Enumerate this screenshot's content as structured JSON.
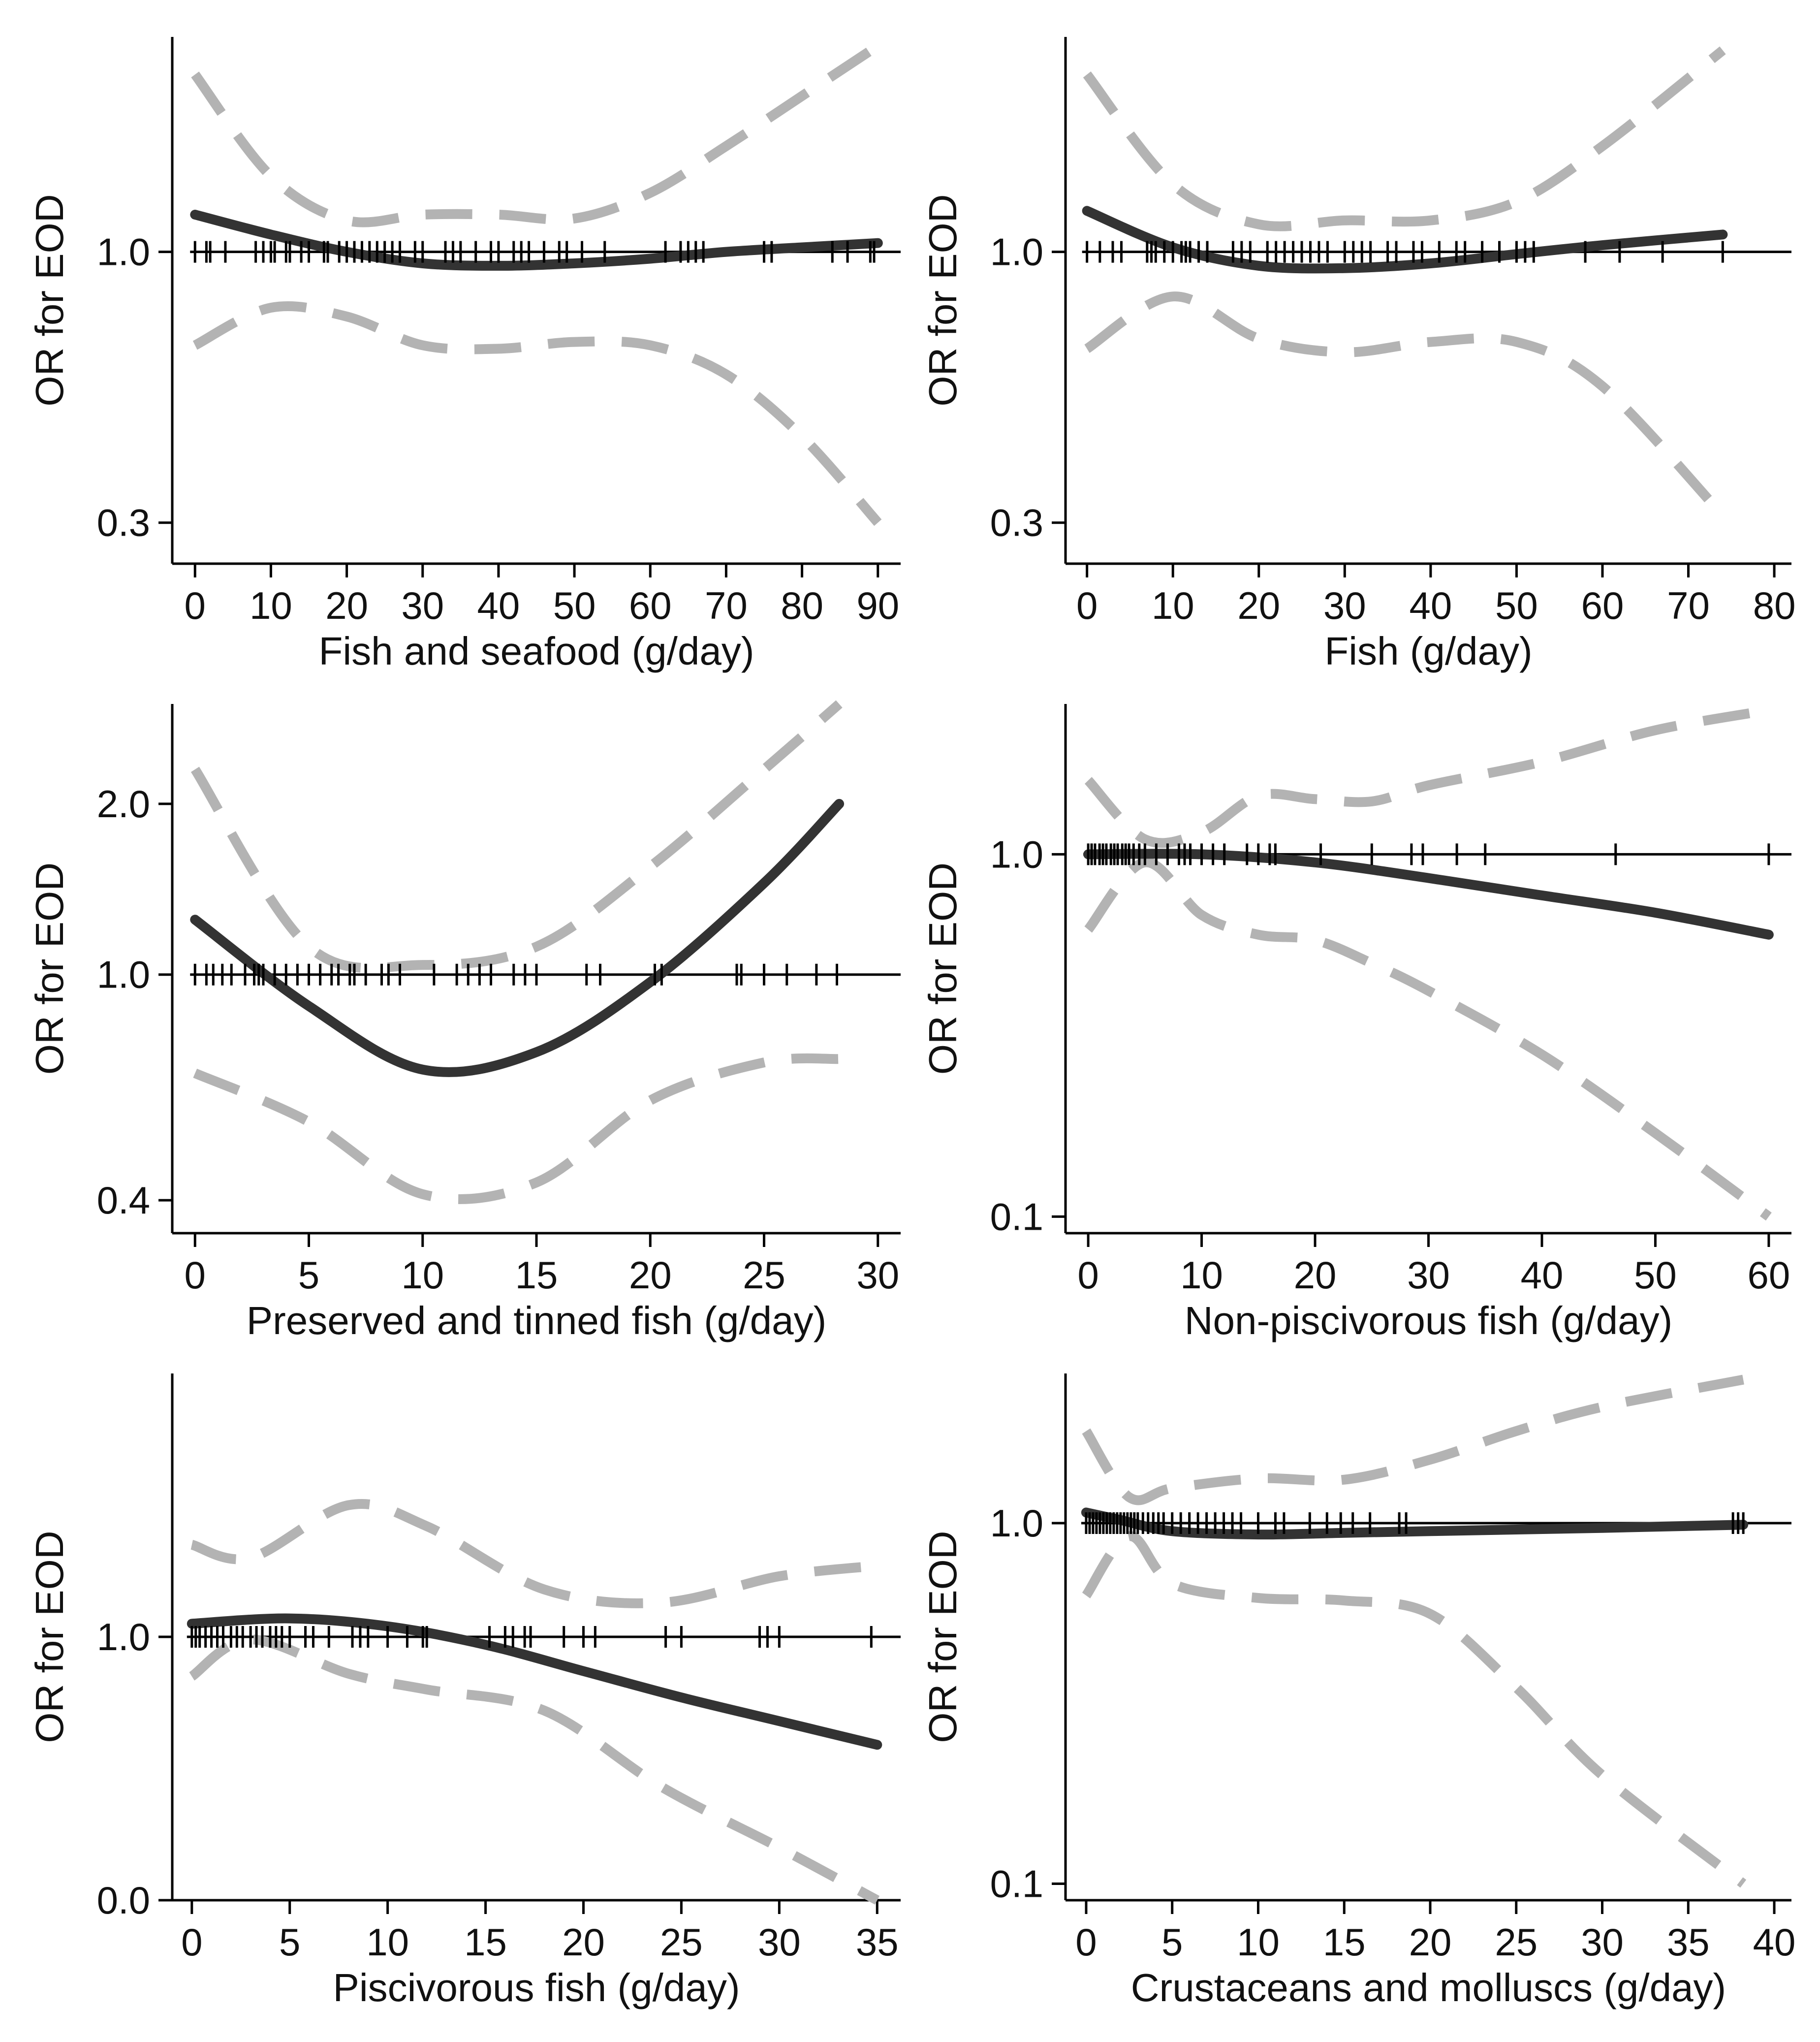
{
  "colors": {
    "estimate": "#333333",
    "ci": "#b3b3b3",
    "axis": "#000000"
  },
  "chart_data": [
    {
      "type": "line",
      "xlabel": "Fish and seafood (g/day)",
      "ylabel": "OR for EOD",
      "x_ticks": [
        0,
        10,
        20,
        30,
        40,
        50,
        60,
        70,
        80,
        90
      ],
      "xlim": [
        -3,
        93
      ],
      "y_ticks": [
        0.3,
        1.0
      ],
      "y_tick_labels": [
        "0.3",
        "1.0"
      ],
      "ylim": [
        0.25,
        2.6
      ],
      "reference_line": 1.0,
      "series": [
        {
          "name": "OR",
          "style": "solid",
          "x": [
            0,
            10,
            20,
            30,
            40,
            50,
            60,
            70,
            80,
            90
          ],
          "y": [
            1.18,
            1.08,
            1.0,
            0.95,
            0.94,
            0.95,
            0.97,
            1.0,
            1.02,
            1.04
          ]
        },
        {
          "name": "Upper 95% CI",
          "style": "dashed",
          "x": [
            0,
            10,
            20,
            30,
            40,
            50,
            60,
            70,
            80,
            90
          ],
          "y": [
            2.2,
            1.4,
            1.15,
            1.18,
            1.18,
            1.16,
            1.3,
            1.6,
            2.0,
            2.5
          ]
        },
        {
          "name": "Lower 95% CI",
          "style": "dashed",
          "x": [
            0,
            10,
            20,
            30,
            40,
            50,
            60,
            70,
            80,
            90
          ],
          "y": [
            0.66,
            0.78,
            0.75,
            0.66,
            0.65,
            0.67,
            0.66,
            0.58,
            0.44,
            0.3
          ]
        }
      ],
      "rug": [
        0,
        1.5,
        2,
        4,
        8,
        9,
        10,
        10.5,
        12,
        12.5,
        14,
        15,
        17,
        17.5,
        19,
        20,
        21,
        22,
        23,
        24,
        25,
        26,
        27,
        29,
        30,
        33,
        34,
        35,
        37,
        39,
        40,
        42,
        43,
        44,
        46,
        48,
        49,
        51,
        54,
        62,
        64,
        65,
        66,
        67,
        75,
        76,
        84,
        86,
        89,
        89.5
      ]
    },
    {
      "type": "line",
      "xlabel": "Fish (g/day)",
      "ylabel": "OR for EOD",
      "x_ticks": [
        0,
        10,
        20,
        30,
        40,
        50,
        60,
        70,
        80
      ],
      "xlim": [
        -2.5,
        82
      ],
      "y_ticks": [
        0.3,
        1.0
      ],
      "y_tick_labels": [
        "0.3",
        "1.0"
      ],
      "ylim": [
        0.25,
        2.6
      ],
      "reference_line": 1.0,
      "series": [
        {
          "name": "OR",
          "style": "solid",
          "x": [
            0,
            10,
            20,
            30,
            40,
            50,
            60,
            74
          ],
          "y": [
            1.2,
            1.02,
            0.94,
            0.93,
            0.95,
            0.99,
            1.03,
            1.08
          ]
        },
        {
          "name": "Upper 95% CI",
          "style": "dashed",
          "x": [
            0,
            10,
            20,
            30,
            40,
            50,
            60,
            74
          ],
          "y": [
            2.2,
            1.35,
            1.13,
            1.15,
            1.15,
            1.25,
            1.6,
            2.45
          ]
        },
        {
          "name": "Lower 95% CI",
          "style": "dashed",
          "x": [
            0,
            10,
            20,
            30,
            40,
            50,
            60,
            74
          ],
          "y": [
            0.65,
            0.82,
            0.68,
            0.64,
            0.67,
            0.67,
            0.55,
            0.31
          ]
        }
      ],
      "rug": [
        0,
        1.5,
        3,
        4,
        7,
        7.5,
        8,
        9,
        10,
        11,
        11.5,
        12,
        13,
        14,
        17,
        18,
        19,
        21,
        22,
        23,
        24,
        25,
        26,
        27,
        28,
        30,
        31,
        32,
        33,
        35,
        36,
        38,
        39,
        41,
        43,
        44,
        46,
        48,
        50,
        51,
        52,
        58,
        62,
        67,
        74
      ]
    },
    {
      "type": "line",
      "xlabel": "Preserved and tinned fish (g/day)",
      "ylabel": "OR for EOD",
      "x_ticks": [
        0,
        5,
        10,
        15,
        20,
        25,
        30
      ],
      "xlim": [
        -1,
        31
      ],
      "y_ticks": [
        0.4,
        1.0,
        2.0
      ],
      "y_tick_labels": [
        "0.4",
        "1.0",
        "2.0"
      ],
      "ylim": [
        0.35,
        3.0
      ],
      "reference_line": 1.0,
      "series": [
        {
          "name": "OR",
          "style": "solid",
          "x": [
            0,
            5,
            10,
            15,
            20,
            25,
            28.3
          ],
          "y": [
            1.25,
            0.88,
            0.68,
            0.73,
            0.97,
            1.45,
            2.0
          ]
        },
        {
          "name": "Upper 95% CI",
          "style": "dashed",
          "x": [
            0,
            5,
            10,
            15,
            20,
            25,
            28.3
          ],
          "y": [
            2.3,
            1.12,
            1.04,
            1.12,
            1.55,
            2.3,
            3.0
          ]
        },
        {
          "name": "Lower 95% CI",
          "style": "dashed",
          "x": [
            0,
            5,
            10,
            15,
            20,
            25,
            28.3
          ],
          "y": [
            0.67,
            0.55,
            0.41,
            0.43,
            0.6,
            0.7,
            0.71
          ]
        }
      ],
      "rug": [
        0,
        0.5,
        0.8,
        1.2,
        1.6,
        2.2,
        2.6,
        2.8,
        3.0,
        3.5,
        4.0,
        4.5,
        5.0,
        5.5,
        6.0,
        6.3,
        6.8,
        7.0,
        7.5,
        8.2,
        8.5,
        9.0,
        10.5,
        11.5,
        12.0,
        12.5,
        13.0,
        14.0,
        14.5,
        15.0,
        17.2,
        17.8,
        20.2,
        20.5,
        23.8,
        24.0,
        25.0,
        26.0,
        27.3,
        28.2
      ]
    },
    {
      "type": "line",
      "xlabel": "Non-piscivorous fish (g/day)",
      "ylabel": "OR for EOD",
      "x_ticks": [
        0,
        10,
        20,
        30,
        40,
        50,
        60
      ],
      "xlim": [
        -2,
        62
      ],
      "y_ticks": [
        0.1,
        1.0
      ],
      "y_tick_labels": [
        "0.1",
        "1.0"
      ],
      "ylim": [
        0.09,
        2.6
      ],
      "reference_line": 1.0,
      "series": [
        {
          "name": "OR",
          "style": "solid",
          "x": [
            0,
            10,
            20,
            30,
            40,
            50,
            60
          ],
          "y": [
            1.0,
            1.0,
            0.95,
            0.86,
            0.77,
            0.69,
            0.6
          ]
        },
        {
          "name": "Upper 95% CI",
          "style": "dashed",
          "x": [
            0,
            5,
            10,
            15,
            20,
            25,
            30,
            40,
            50,
            60
          ],
          "y": [
            1.6,
            1.1,
            1.15,
            1.45,
            1.42,
            1.4,
            1.55,
            1.8,
            2.2,
            2.5
          ]
        },
        {
          "name": "Lower 95% CI",
          "style": "dashed",
          "x": [
            0,
            5,
            10,
            15,
            20,
            25,
            30,
            40,
            50,
            60
          ],
          "y": [
            0.62,
            0.95,
            0.68,
            0.6,
            0.58,
            0.5,
            0.42,
            0.28,
            0.17,
            0.1
          ]
        }
      ],
      "rug": [
        0,
        0.3,
        0.6,
        1.0,
        1.3,
        1.6,
        2.0,
        2.3,
        2.6,
        3.0,
        3.3,
        3.6,
        4.0,
        4.5,
        5.0,
        6.0,
        7.0,
        8.0,
        8.5,
        9.0,
        10.0,
        11.0,
        12.0,
        14.0,
        15.0,
        16.0,
        16.5,
        20.5,
        25.0,
        28.5,
        29.5,
        32.5,
        35.0,
        46.5,
        60.0
      ]
    },
    {
      "type": "line",
      "xlabel": "Piscivorous fish (g/day)",
      "ylabel": "OR for EOD",
      "x_ticks": [
        0,
        5,
        10,
        15,
        20,
        25,
        30,
        35
      ],
      "xlim": [
        -1,
        36.2
      ],
      "y_ticks": [
        0.0,
        1.0
      ],
      "y_tick_labels": [
        "0.0",
        "1.0"
      ],
      "ylim": [
        0.0,
        2.0
      ],
      "reference_line": 1.0,
      "series": [
        {
          "name": "OR",
          "style": "solid",
          "x": [
            0,
            5,
            10,
            15,
            20,
            25,
            30,
            35
          ],
          "y": [
            1.05,
            1.07,
            1.04,
            0.97,
            0.87,
            0.77,
            0.68,
            0.59
          ]
        },
        {
          "name": "Upper 95% CI",
          "style": "dashed",
          "x": [
            0,
            3,
            8,
            12,
            18,
            24,
            30,
            35
          ],
          "y": [
            1.35,
            1.3,
            1.5,
            1.42,
            1.18,
            1.13,
            1.23,
            1.27
          ]
        },
        {
          "name": "Lower 95% CI",
          "style": "dashed",
          "x": [
            0,
            3,
            8,
            12,
            18,
            24,
            30,
            35
          ],
          "y": [
            0.85,
            0.99,
            0.86,
            0.8,
            0.72,
            0.43,
            0.2,
            0.0
          ]
        }
      ],
      "rug": [
        0,
        0.2,
        0.4,
        0.7,
        1.0,
        1.3,
        1.6,
        2.0,
        2.3,
        2.6,
        3.0,
        3.3,
        3.6,
        4.0,
        4.3,
        4.6,
        5.0,
        5.8,
        6.2,
        7.0,
        8.2,
        8.6,
        9.0,
        10.0,
        11.0,
        11.8,
        12.0,
        15.2,
        16.0,
        16.4,
        17.0,
        17.3,
        19.0,
        20.0,
        20.6,
        24.2,
        25.0,
        29.0,
        29.4,
        30.0,
        34.7
      ]
    },
    {
      "type": "line",
      "xlabel": "Crustaceans and molluscs (g/day)",
      "ylabel": "OR for EOD",
      "x_ticks": [
        0,
        5,
        10,
        15,
        20,
        25,
        30,
        35,
        40
      ],
      "xlim": [
        -1.2,
        41
      ],
      "y_ticks": [
        0.1,
        1.0
      ],
      "y_tick_labels": [
        "0.1",
        "1.0"
      ],
      "ylim": [
        0.09,
        2.6
      ],
      "reference_line": 1.0,
      "series": [
        {
          "name": "OR",
          "style": "solid",
          "x": [
            0,
            2,
            5,
            10,
            15,
            20,
            25,
            30,
            38.2
          ],
          "y": [
            1.07,
            1.02,
            0.95,
            0.93,
            0.94,
            0.95,
            0.96,
            0.97,
            0.99
          ]
        },
        {
          "name": "Upper 95% CI",
          "style": "dashed",
          "x": [
            0,
            2.5,
            5,
            10,
            15,
            20,
            25,
            30,
            38.2
          ],
          "y": [
            1.8,
            1.18,
            1.25,
            1.33,
            1.32,
            1.5,
            1.8,
            2.1,
            2.5
          ]
        },
        {
          "name": "Lower 95% CI",
          "style": "dashed",
          "x": [
            0,
            2.5,
            5,
            10,
            15,
            20,
            25,
            30,
            38.2
          ],
          "y": [
            0.63,
            0.92,
            0.68,
            0.62,
            0.61,
            0.56,
            0.35,
            0.2,
            0.1
          ]
        }
      ],
      "rug": [
        0,
        0.2,
        0.4,
        0.6,
        0.8,
        1.0,
        1.2,
        1.4,
        1.6,
        1.8,
        2.0,
        2.2,
        2.4,
        2.6,
        2.8,
        3.0,
        3.3,
        3.6,
        3.9,
        4.2,
        4.5,
        5.0,
        5.5,
        6.0,
        6.5,
        7.0,
        7.5,
        8.0,
        8.5,
        9.0,
        10.0,
        11.0,
        11.5,
        13.0,
        14.0,
        14.8,
        15.5,
        16.5,
        18.2,
        18.6,
        37.6,
        37.9,
        38.2
      ]
    }
  ]
}
